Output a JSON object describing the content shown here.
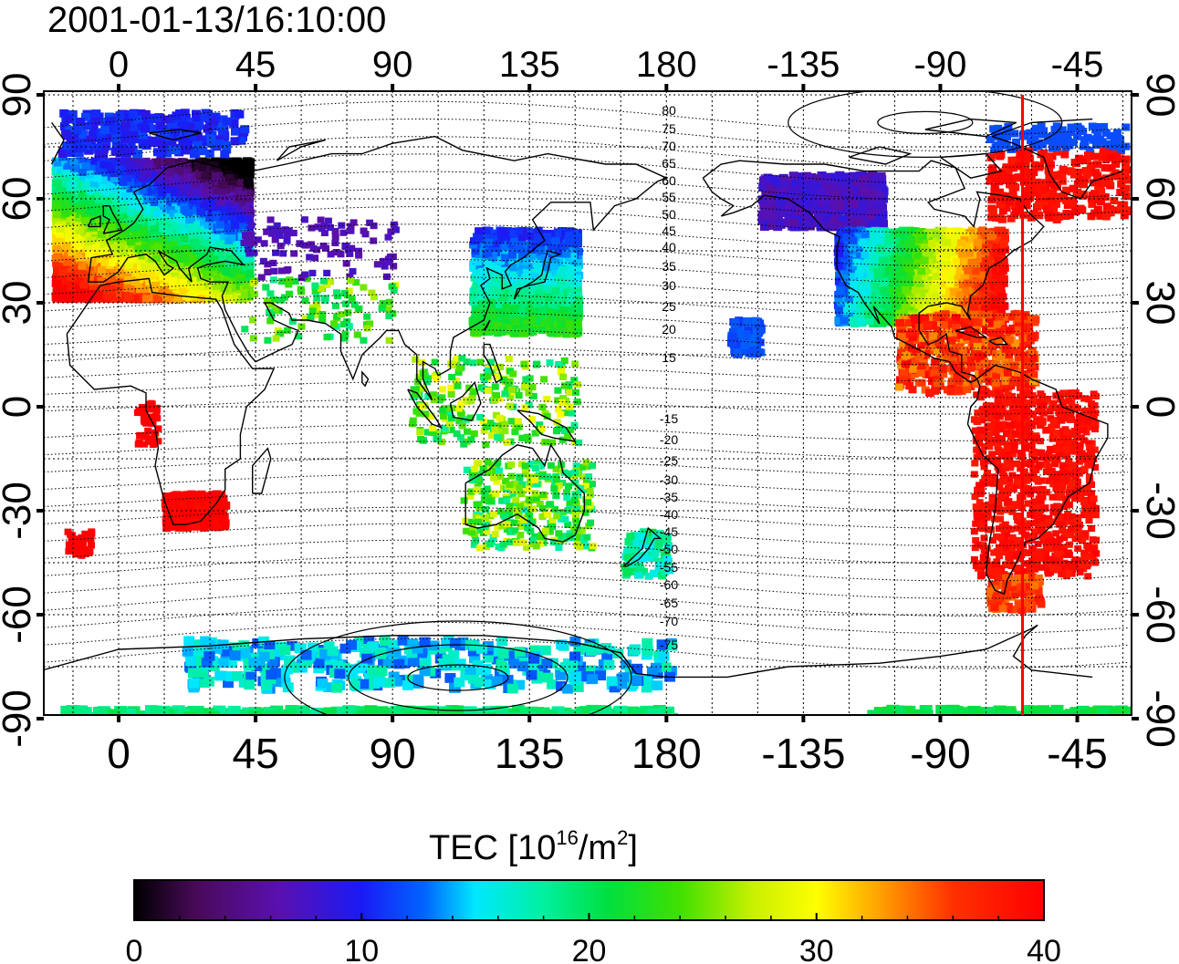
{
  "title": "2001-01-13/16:10:00",
  "map": {
    "lon_ticks": [
      "0",
      "45",
      "90",
      "135",
      "180",
      "-135",
      "-90",
      "-45"
    ],
    "lat_ticks_left": [
      "90",
      "60",
      "30",
      "0",
      "-30",
      "-60",
      "-90"
    ],
    "lat_ticks_right": [
      "90",
      "60",
      "30",
      "0",
      "-30",
      "-60",
      "-90"
    ],
    "contour_labels": [
      "80",
      "75",
      "70",
      "65",
      "60",
      "55",
      "50",
      "45",
      "40",
      "35",
      "30",
      "25",
      "20",
      "15",
      "-15",
      "-20",
      "-25",
      "-30",
      "-35",
      "-40",
      "-45",
      "-50",
      "-55",
      "-60",
      "-65",
      "-70",
      "-75"
    ],
    "terminator_color": "#ff0000",
    "terminator_lon": -60
  },
  "colorbar": {
    "label_main": "TEC  [10",
    "label_exp1": "16",
    "label_mid": "/m",
    "label_exp2": "2",
    "label_end": "]",
    "ticks": [
      "0",
      "10",
      "20",
      "30",
      "40"
    ],
    "min": 0,
    "max": 40
  }
}
